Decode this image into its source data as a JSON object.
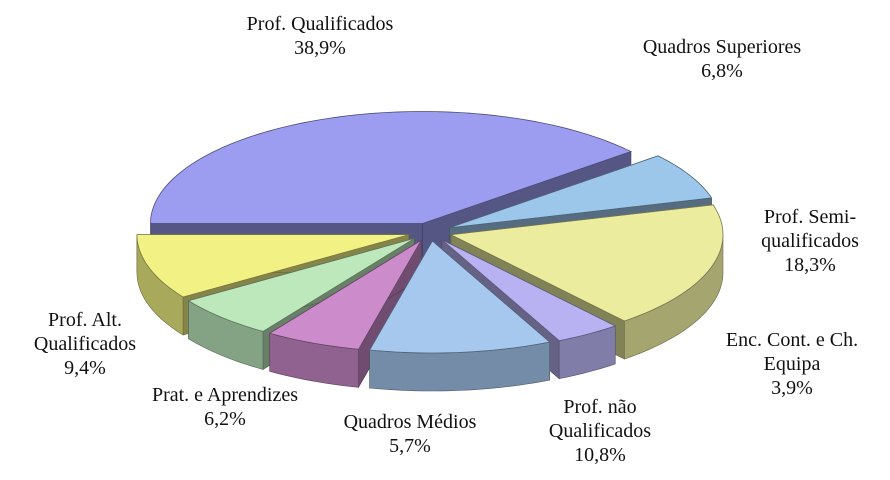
{
  "chart_data": {
    "type": "pie",
    "categories": [
      "Prof. Qualificados",
      "Quadros Superiores",
      "Prof. Semi-qualificados",
      "Enc. Cont. e Ch. Equipa",
      "Prof. não Qualificados",
      "Quadros Médios",
      "Prat. e Aprendizes",
      "Prof. Alt. Qualificados"
    ],
    "values": [
      38.9,
      6.8,
      18.3,
      3.9,
      10.8,
      5.7,
      6.2,
      9.4
    ],
    "value_labels": [
      "38,9%",
      "6,8%",
      "18,3%",
      "3,9%",
      "10,8%",
      "5,7%",
      "6,2%",
      "9,4%"
    ],
    "colors": [
      "#9c9cf0",
      "#9cc6ea",
      "#ecec9e",
      "#b8b2f2",
      "#a6c8ee",
      "#cc8ccc",
      "#bce8bc",
      "#f2f284"
    ]
  }
}
